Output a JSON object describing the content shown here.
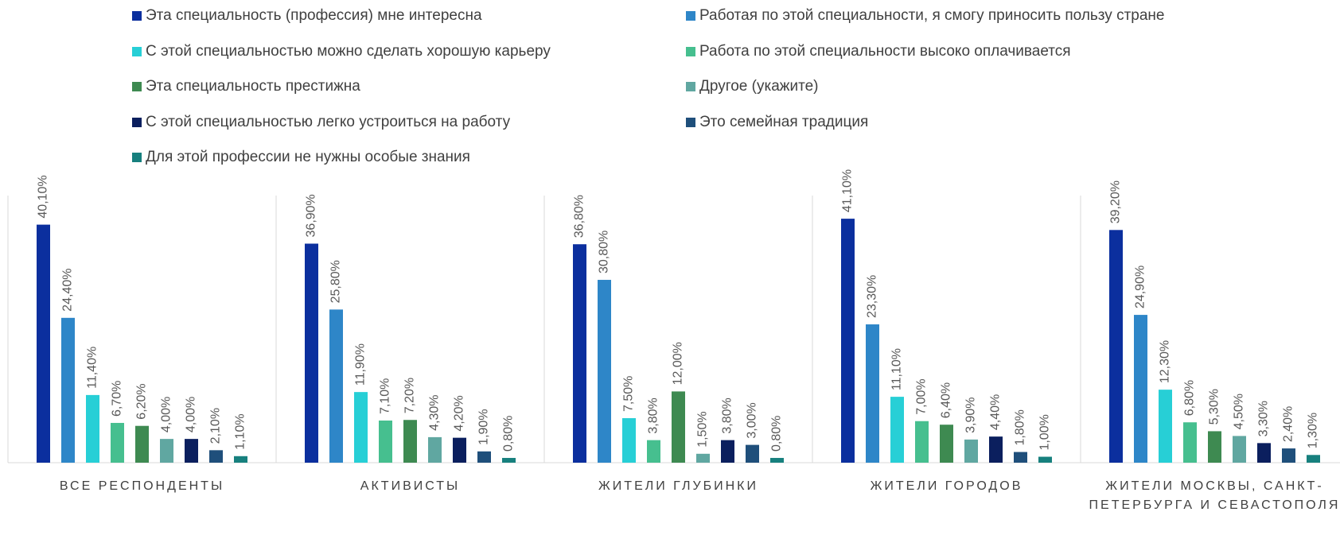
{
  "chart_data": {
    "type": "bar",
    "legend": "top",
    "categories": [
      "ВСЕ РЕСПОНДЕНТЫ",
      "АКТИВИСТЫ",
      "ЖИТЕЛИ ГЛУБИНКИ",
      "ЖИТЕЛИ ГОРОДОВ",
      "ЖИТЕЛИ МОСКВЫ, САНКТ-ПЕТЕРБУРГА И СЕВАСТОПОЛЯ"
    ],
    "ylim": [
      0,
      45
    ],
    "series": [
      {
        "name": "Эта специальность (профессия) мне интересна",
        "color": "#0b2f9e",
        "values": [
          40.1,
          36.9,
          36.8,
          41.1,
          39.2
        ],
        "value_labels": [
          "40,10%",
          "36,90%",
          "36,80%",
          "41,10%",
          "39,20%"
        ]
      },
      {
        "name": "Работая по этой специальности, я смогу приносить пользу стране",
        "color": "#2e86c8",
        "values": [
          24.4,
          25.8,
          30.8,
          23.3,
          24.9
        ],
        "value_labels": [
          "24,40%",
          "25,80%",
          "30,80%",
          "23,30%",
          "24,90%"
        ]
      },
      {
        "name": "С этой специальностью можно сделать хорошую карьеру",
        "color": "#27cfd6",
        "values": [
          11.4,
          11.9,
          7.5,
          11.1,
          12.3
        ],
        "value_labels": [
          "11,40%",
          "11,90%",
          "7,50%",
          "11,10%",
          "12,30%"
        ]
      },
      {
        "name": "Работа по этой специальности высоко оплачивается",
        "color": "#46bf8f",
        "values": [
          6.7,
          7.1,
          3.8,
          7.0,
          6.8
        ],
        "value_labels": [
          "6,70%",
          "7,10%",
          "3,80%",
          "7,00%",
          "6,80%"
        ]
      },
      {
        "name": "Эта специальность престижна",
        "color": "#3e8a51",
        "values": [
          6.2,
          7.2,
          12.0,
          6.4,
          5.3
        ],
        "value_labels": [
          "6,20%",
          "7,20%",
          "12,00%",
          "6,40%",
          "5,30%"
        ]
      },
      {
        "name": "Другое (укажите)",
        "color": "#60a7a1",
        "values": [
          4.0,
          4.3,
          1.5,
          3.9,
          4.5
        ],
        "value_labels": [
          "4,00%",
          "4,30%",
          "1,50%",
          "3,90%",
          "4,50%"
        ]
      },
      {
        "name": "С этой специальностью легко устроиться на работу",
        "color": "#0b1f5e",
        "values": [
          4.0,
          4.2,
          3.8,
          4.4,
          3.3
        ],
        "value_labels": [
          "4,00%",
          "4,20%",
          "3,80%",
          "4,40%",
          "3,30%"
        ]
      },
      {
        "name": "Это семейная традиция",
        "color": "#1f4f7b",
        "values": [
          2.1,
          1.9,
          3.0,
          1.8,
          2.4
        ],
        "value_labels": [
          "2,10%",
          "1,90%",
          "3,00%",
          "1,80%",
          "2,40%"
        ]
      },
      {
        "name": "Для этой профессии не нужны особые знания",
        "color": "#17807e",
        "values": [
          1.1,
          0.8,
          0.8,
          1.0,
          1.3
        ],
        "value_labels": [
          "1,10%",
          "0,80%",
          "0,80%",
          "1,00%",
          "1,30%"
        ]
      }
    ]
  }
}
